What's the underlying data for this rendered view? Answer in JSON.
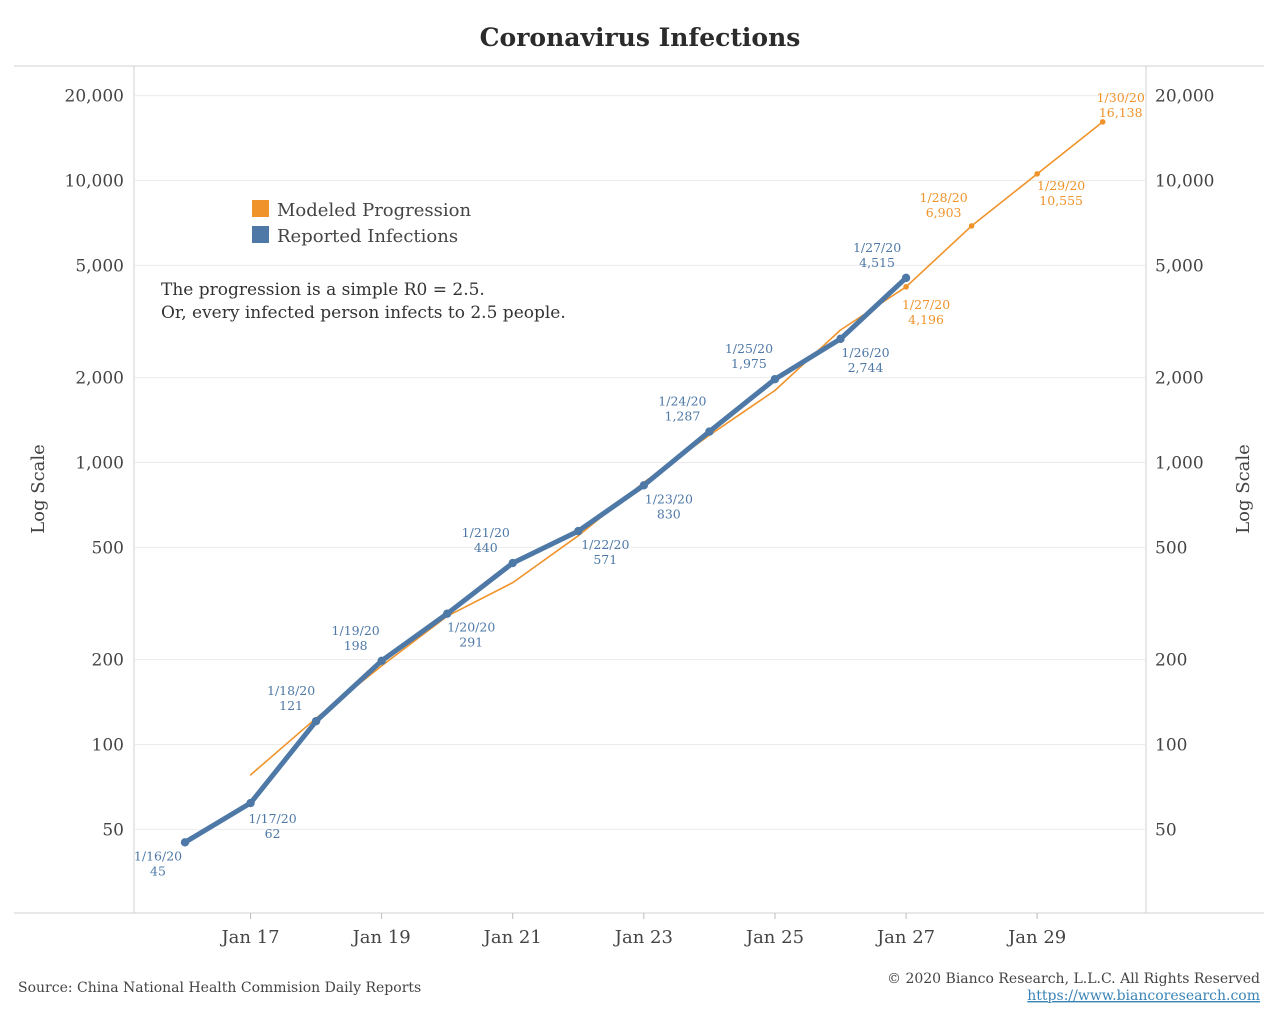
{
  "title": "Coronavirus Infections",
  "colors": {
    "modeled": "#f0932b",
    "reported": "#4e79a7",
    "grid": "#ebebeb",
    "frame": "#d0d0d0"
  },
  "legend": [
    {
      "label": "Modeled Progression",
      "color": "#f0932b"
    },
    {
      "label": "Reported Infections",
      "color": "#4e79a7"
    }
  ],
  "note": {
    "line1": "The progression is a simple R0 = 2.5.",
    "line2": "Or, every infected person infects to 2.5 people."
  },
  "footer": {
    "source": "Source: China National Health Commision Daily Reports",
    "copyright": "© 2020 Bianco Research, L.L.C. All Rights Reserved",
    "url": "https://www.biancoresearch.com"
  },
  "chart_data": {
    "type": "line",
    "title": "Coronavirus Infections",
    "ylabel": "Log Scale",
    "yscale": "log",
    "ylim": [
      30,
      25000
    ],
    "xlim": [
      "2020-01-15",
      "2020-01-31"
    ],
    "yticks": [
      {
        "value": 50,
        "label": "50"
      },
      {
        "value": 100,
        "label": "100"
      },
      {
        "value": 200,
        "label": "200"
      },
      {
        "value": 500,
        "label": "500"
      },
      {
        "value": 1000,
        "label": "1,000"
      },
      {
        "value": 2000,
        "label": "2,000"
      },
      {
        "value": 5000,
        "label": "5,000"
      },
      {
        "value": 10000,
        "label": "10,000"
      },
      {
        "value": 20000,
        "label": "20,000"
      }
    ],
    "xticks": [
      {
        "date": "2020-01-17",
        "label": "Jan 17"
      },
      {
        "date": "2020-01-19",
        "label": "Jan 19"
      },
      {
        "date": "2020-01-21",
        "label": "Jan 21"
      },
      {
        "date": "2020-01-23",
        "label": "Jan 23"
      },
      {
        "date": "2020-01-25",
        "label": "Jan 25"
      },
      {
        "date": "2020-01-27",
        "label": "Jan 27"
      },
      {
        "date": "2020-01-29",
        "label": "Jan 29"
      }
    ],
    "grid": true,
    "legend_position": "top-left",
    "series": [
      {
        "name": "Modeled Progression",
        "color": "#f0932b",
        "points": [
          {
            "x": "2020-01-17",
            "y": 78
          },
          {
            "x": "2020-01-18",
            "y": 124
          },
          {
            "x": "2020-01-19",
            "y": 190
          },
          {
            "x": "2020-01-20",
            "y": 285
          },
          {
            "x": "2020-01-21",
            "y": 375
          },
          {
            "x": "2020-01-22",
            "y": 550
          },
          {
            "x": "2020-01-23",
            "y": 850
          },
          {
            "x": "2020-01-24",
            "y": 1250
          },
          {
            "x": "2020-01-25",
            "y": 1800
          },
          {
            "x": "2020-01-26",
            "y": 2950
          },
          {
            "x": "2020-01-27",
            "y": 4196,
            "label": [
              "1/27/20",
              "4,196"
            ]
          },
          {
            "x": "2020-01-28",
            "y": 6903,
            "label": [
              "1/28/20",
              "6,903"
            ]
          },
          {
            "x": "2020-01-29",
            "y": 10555,
            "label": [
              "1/29/20",
              "10,555"
            ]
          },
          {
            "x": "2020-01-30",
            "y": 16138,
            "label": [
              "1/30/20",
              "16,138"
            ]
          }
        ]
      },
      {
        "name": "Reported Infections",
        "color": "#4e79a7",
        "points": [
          {
            "x": "2020-01-16",
            "y": 45,
            "label": [
              "1/16/20",
              "45"
            ]
          },
          {
            "x": "2020-01-17",
            "y": 62,
            "label": [
              "1/17/20",
              "62"
            ]
          },
          {
            "x": "2020-01-18",
            "y": 121,
            "label": [
              "1/18/20",
              "121"
            ]
          },
          {
            "x": "2020-01-19",
            "y": 198,
            "label": [
              "1/19/20",
              "198"
            ]
          },
          {
            "x": "2020-01-20",
            "y": 291,
            "label": [
              "1/20/20",
              "291"
            ]
          },
          {
            "x": "2020-01-21",
            "y": 440,
            "label": [
              "1/21/20",
              "440"
            ]
          },
          {
            "x": "2020-01-22",
            "y": 571,
            "label": [
              "1/22/20",
              "571"
            ]
          },
          {
            "x": "2020-01-23",
            "y": 830,
            "label": [
              "1/23/20",
              "830"
            ]
          },
          {
            "x": "2020-01-24",
            "y": 1287,
            "label": [
              "1/24/20",
              "1,287"
            ]
          },
          {
            "x": "2020-01-25",
            "y": 1975,
            "label": [
              "1/25/20",
              "1,975"
            ]
          },
          {
            "x": "2020-01-26",
            "y": 2744,
            "label": [
              "1/26/20",
              "2,744"
            ]
          },
          {
            "x": "2020-01-27",
            "y": 4515,
            "label": [
              "1/27/20",
              "4,515"
            ]
          }
        ]
      }
    ]
  }
}
